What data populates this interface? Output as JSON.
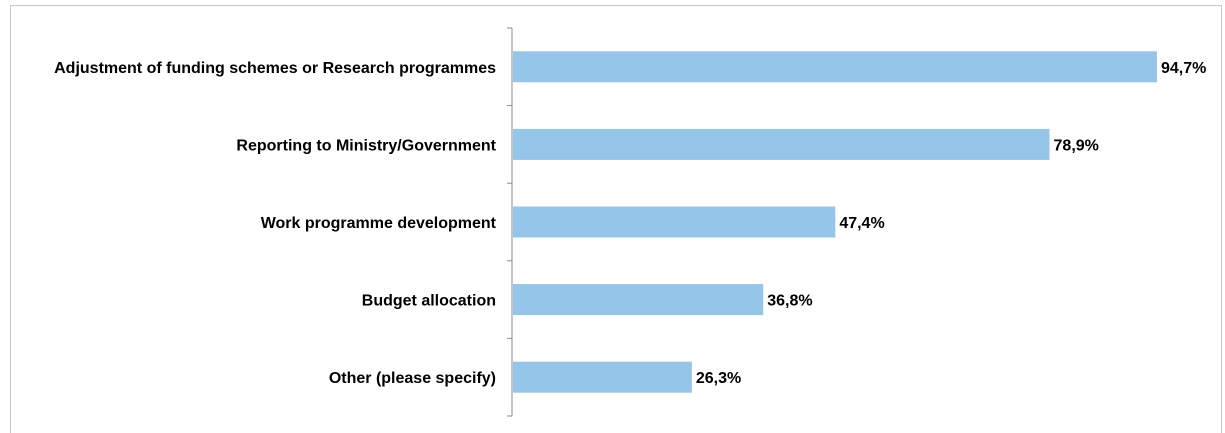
{
  "chart_data": {
    "type": "bar",
    "orientation": "horizontal",
    "categories": [
      "Adjustment of funding schemes or Research programmes",
      "Reporting to Ministry/Government",
      "Work programme development",
      "Budget allocation",
      "Other (please specify)"
    ],
    "values": [
      94.7,
      78.9,
      47.4,
      36.8,
      26.3
    ],
    "value_labels": [
      "94,7%",
      "78,9%",
      "47,4%",
      "36,8%",
      "26,3%"
    ],
    "unit": "%",
    "xlim": [
      0,
      100
    ],
    "grid": false,
    "legend": "none",
    "bar_color": "#95c5e8"
  }
}
